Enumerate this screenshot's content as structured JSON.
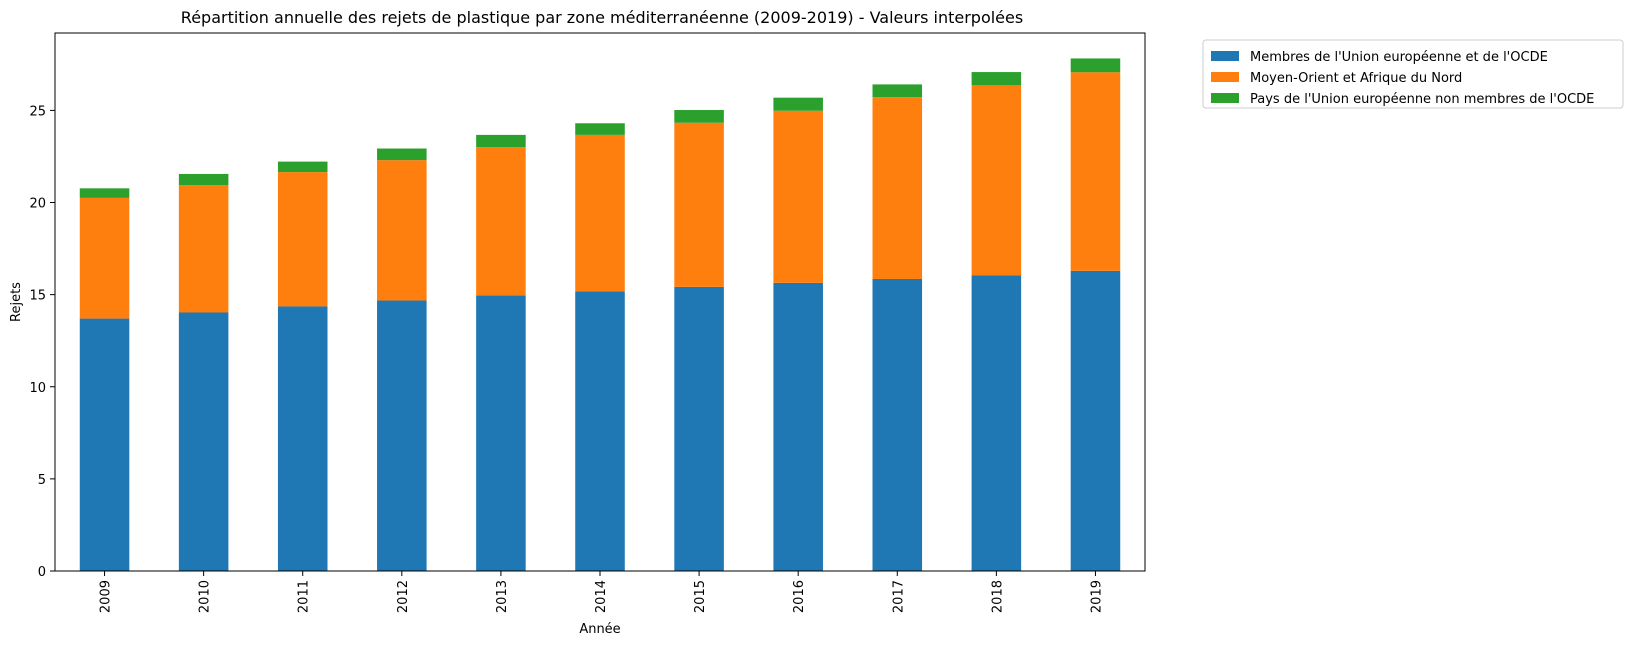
{
  "chart_data": {
    "type": "bar",
    "stacked": true,
    "title": "Répartition annuelle des rejets de plastique par zone méditerranéenne (2009-2019) - Valeurs interpolées",
    "xlabel": "Année",
    "ylabel": "Rejets",
    "ylim": [
      0,
      29.2
    ],
    "yticks": [
      0,
      5,
      10,
      15,
      20,
      25
    ],
    "grid": false,
    "legend_position": "outside-top-right",
    "categories": [
      "2009",
      "2010",
      "2011",
      "2012",
      "2013",
      "2014",
      "2015",
      "2016",
      "2017",
      "2018",
      "2019"
    ],
    "series": [
      {
        "name": "Membres de l'Union européenne et de l'OCDE",
        "color": "#1f77b4",
        "values": [
          13.7,
          14.03,
          14.36,
          14.68,
          14.95,
          15.18,
          15.42,
          15.64,
          15.85,
          16.04,
          16.29
        ]
      },
      {
        "name": "Moyen-Orient et Afrique du Nord",
        "color": "#ff7f0e",
        "values": [
          6.55,
          6.91,
          7.29,
          7.62,
          8.05,
          8.49,
          8.91,
          9.34,
          9.87,
          10.32,
          10.78
        ]
      },
      {
        "name": "Pays de l'Union européenne non membres de l'OCDE",
        "color": "#2ca02c",
        "values": [
          0.52,
          0.61,
          0.57,
          0.63,
          0.67,
          0.63,
          0.69,
          0.71,
          0.69,
          0.72,
          0.75
        ]
      }
    ]
  }
}
